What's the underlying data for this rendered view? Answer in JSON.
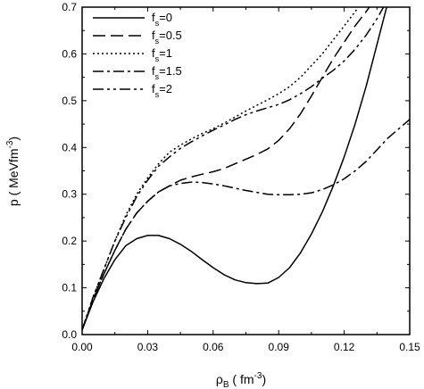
{
  "chart_data": {
    "type": "line",
    "xlabel_main": "ρ",
    "xlabel_sub": "B",
    "xlabel_rest": " ( fm",
    "xlabel_sup": "-3",
    "xlabel_close": ")",
    "ylabel_main": "p ( MeVfm",
    "ylabel_sup": "-3",
    "ylabel_close": ")",
    "xlim": [
      0,
      0.15
    ],
    "ylim": [
      0,
      0.7
    ],
    "xticks": [
      "0.00",
      "0.03",
      "0.06",
      "0.09",
      "0.12",
      "0.15"
    ],
    "yticks": [
      "0.0",
      "0.1",
      "0.2",
      "0.3",
      "0.4",
      "0.5",
      "0.6",
      "0.7"
    ],
    "legend_position": "top-left",
    "series": [
      {
        "name": "f_s=0",
        "label_main": "f",
        "label_sub": "s",
        "label_rest": "=0",
        "dash": "solid",
        "points": [
          [
            0.0,
            0.01
          ],
          [
            0.005,
            0.07
          ],
          [
            0.01,
            0.12
          ],
          [
            0.015,
            0.16
          ],
          [
            0.02,
            0.19
          ],
          [
            0.025,
            0.205
          ],
          [
            0.03,
            0.212
          ],
          [
            0.035,
            0.212
          ],
          [
            0.04,
            0.205
          ],
          [
            0.045,
            0.193
          ],
          [
            0.05,
            0.178
          ],
          [
            0.055,
            0.16
          ],
          [
            0.06,
            0.143
          ],
          [
            0.065,
            0.128
          ],
          [
            0.07,
            0.117
          ],
          [
            0.075,
            0.111
          ],
          [
            0.08,
            0.109
          ],
          [
            0.085,
            0.11
          ],
          [
            0.09,
            0.122
          ],
          [
            0.095,
            0.143
          ],
          [
            0.1,
            0.175
          ],
          [
            0.105,
            0.215
          ],
          [
            0.11,
            0.262
          ],
          [
            0.115,
            0.318
          ],
          [
            0.12,
            0.38
          ],
          [
            0.125,
            0.45
          ],
          [
            0.13,
            0.53
          ],
          [
            0.135,
            0.62
          ],
          [
            0.14,
            0.71
          ]
        ]
      },
      {
        "name": "f_s=0.5",
        "label_main": "f",
        "label_sub": "s",
        "label_rest": "=0.5",
        "dash": "long-dash",
        "points": [
          [
            0.0,
            0.01
          ],
          [
            0.005,
            0.075
          ],
          [
            0.01,
            0.13
          ],
          [
            0.015,
            0.18
          ],
          [
            0.02,
            0.225
          ],
          [
            0.025,
            0.26
          ],
          [
            0.03,
            0.285
          ],
          [
            0.035,
            0.305
          ],
          [
            0.04,
            0.318
          ],
          [
            0.045,
            0.33
          ],
          [
            0.05,
            0.337
          ],
          [
            0.055,
            0.343
          ],
          [
            0.06,
            0.348
          ],
          [
            0.065,
            0.355
          ],
          [
            0.07,
            0.365
          ],
          [
            0.075,
            0.375
          ],
          [
            0.08,
            0.385
          ],
          [
            0.085,
            0.397
          ],
          [
            0.09,
            0.415
          ],
          [
            0.095,
            0.44
          ],
          [
            0.1,
            0.472
          ],
          [
            0.105,
            0.51
          ],
          [
            0.11,
            0.55
          ],
          [
            0.115,
            0.59
          ],
          [
            0.12,
            0.625
          ],
          [
            0.125,
            0.66
          ],
          [
            0.13,
            0.69
          ],
          [
            0.133,
            0.71
          ]
        ]
      },
      {
        "name": "f_s=1",
        "label_main": "f",
        "label_sub": "s",
        "label_rest": "=1",
        "dash": "dot",
        "points": [
          [
            0.0,
            0.01
          ],
          [
            0.005,
            0.08
          ],
          [
            0.01,
            0.14
          ],
          [
            0.015,
            0.2
          ],
          [
            0.02,
            0.255
          ],
          [
            0.025,
            0.3
          ],
          [
            0.03,
            0.335
          ],
          [
            0.035,
            0.365
          ],
          [
            0.04,
            0.39
          ],
          [
            0.045,
            0.405
          ],
          [
            0.05,
            0.418
          ],
          [
            0.055,
            0.43
          ],
          [
            0.06,
            0.44
          ],
          [
            0.065,
            0.452
          ],
          [
            0.07,
            0.465
          ],
          [
            0.075,
            0.478
          ],
          [
            0.08,
            0.49
          ],
          [
            0.085,
            0.502
          ],
          [
            0.09,
            0.515
          ],
          [
            0.095,
            0.53
          ],
          [
            0.1,
            0.55
          ],
          [
            0.105,
            0.575
          ],
          [
            0.11,
            0.6
          ],
          [
            0.115,
            0.63
          ],
          [
            0.12,
            0.66
          ],
          [
            0.125,
            0.69
          ],
          [
            0.128,
            0.71
          ]
        ]
      },
      {
        "name": "f_s=1.5",
        "label_main": "f",
        "label_sub": "s",
        "label_rest": "=1.5",
        "dash": "dash-dot",
        "points": [
          [
            0.0,
            0.01
          ],
          [
            0.005,
            0.075
          ],
          [
            0.01,
            0.13
          ],
          [
            0.015,
            0.18
          ],
          [
            0.02,
            0.225
          ],
          [
            0.025,
            0.26
          ],
          [
            0.03,
            0.285
          ],
          [
            0.035,
            0.305
          ],
          [
            0.04,
            0.318
          ],
          [
            0.045,
            0.323
          ],
          [
            0.05,
            0.326
          ],
          [
            0.055,
            0.325
          ],
          [
            0.06,
            0.322
          ],
          [
            0.065,
            0.318
          ],
          [
            0.07,
            0.313
          ],
          [
            0.075,
            0.308
          ],
          [
            0.08,
            0.304
          ],
          [
            0.085,
            0.3
          ],
          [
            0.09,
            0.299
          ],
          [
            0.095,
            0.299
          ],
          [
            0.1,
            0.3
          ],
          [
            0.105,
            0.303
          ],
          [
            0.11,
            0.31
          ],
          [
            0.115,
            0.32
          ],
          [
            0.12,
            0.333
          ],
          [
            0.125,
            0.35
          ],
          [
            0.13,
            0.37
          ],
          [
            0.135,
            0.395
          ],
          [
            0.14,
            0.42
          ],
          [
            0.145,
            0.44
          ],
          [
            0.15,
            0.46
          ]
        ]
      },
      {
        "name": "f_s=2",
        "label_main": "f",
        "label_sub": "s",
        "label_rest": "=2",
        "dash": "dash-dot-dot",
        "points": [
          [
            0.0,
            0.01
          ],
          [
            0.005,
            0.08
          ],
          [
            0.01,
            0.14
          ],
          [
            0.015,
            0.2
          ],
          [
            0.02,
            0.25
          ],
          [
            0.025,
            0.295
          ],
          [
            0.03,
            0.33
          ],
          [
            0.035,
            0.36
          ],
          [
            0.04,
            0.38
          ],
          [
            0.045,
            0.398
          ],
          [
            0.05,
            0.412
          ],
          [
            0.055,
            0.425
          ],
          [
            0.06,
            0.437
          ],
          [
            0.065,
            0.448
          ],
          [
            0.07,
            0.46
          ],
          [
            0.075,
            0.47
          ],
          [
            0.08,
            0.478
          ],
          [
            0.085,
            0.485
          ],
          [
            0.09,
            0.492
          ],
          [
            0.095,
            0.502
          ],
          [
            0.1,
            0.515
          ],
          [
            0.105,
            0.53
          ],
          [
            0.11,
            0.548
          ],
          [
            0.115,
            0.565
          ],
          [
            0.12,
            0.585
          ],
          [
            0.125,
            0.61
          ],
          [
            0.13,
            0.64
          ],
          [
            0.135,
            0.675
          ],
          [
            0.138,
            0.7
          ]
        ]
      }
    ]
  }
}
